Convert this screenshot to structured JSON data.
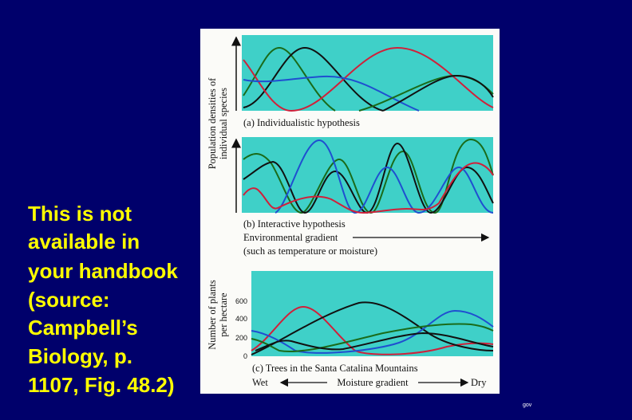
{
  "slide": {
    "text_lines": [
      "This is not",
      "available in",
      "your handbook",
      "(source:",
      "Campbell’s",
      "Biology, p.",
      "1107, Fig. 48.2)"
    ],
    "footer": "gov"
  },
  "figure": {
    "top_axis_label_lines": [
      "Population densities of",
      "individual species"
    ],
    "panel_a": {
      "caption": "(a) Individualistic hypothesis"
    },
    "panel_b": {
      "caption": "(b) Interactive hypothesis",
      "gradient_label": "Environmental gradient",
      "gradient_note": "(such as temperature or moisture)"
    },
    "panel_c": {
      "axis_label_lines": [
        "Number of plants",
        "per hectare"
      ],
      "ticks": [
        "600",
        "400",
        "200",
        "0"
      ],
      "caption": "(c) Trees in the Santa Catalina Mountains",
      "left_label": "Wet",
      "center_label": "Moisture gradient",
      "right_label": "Dry"
    }
  }
}
